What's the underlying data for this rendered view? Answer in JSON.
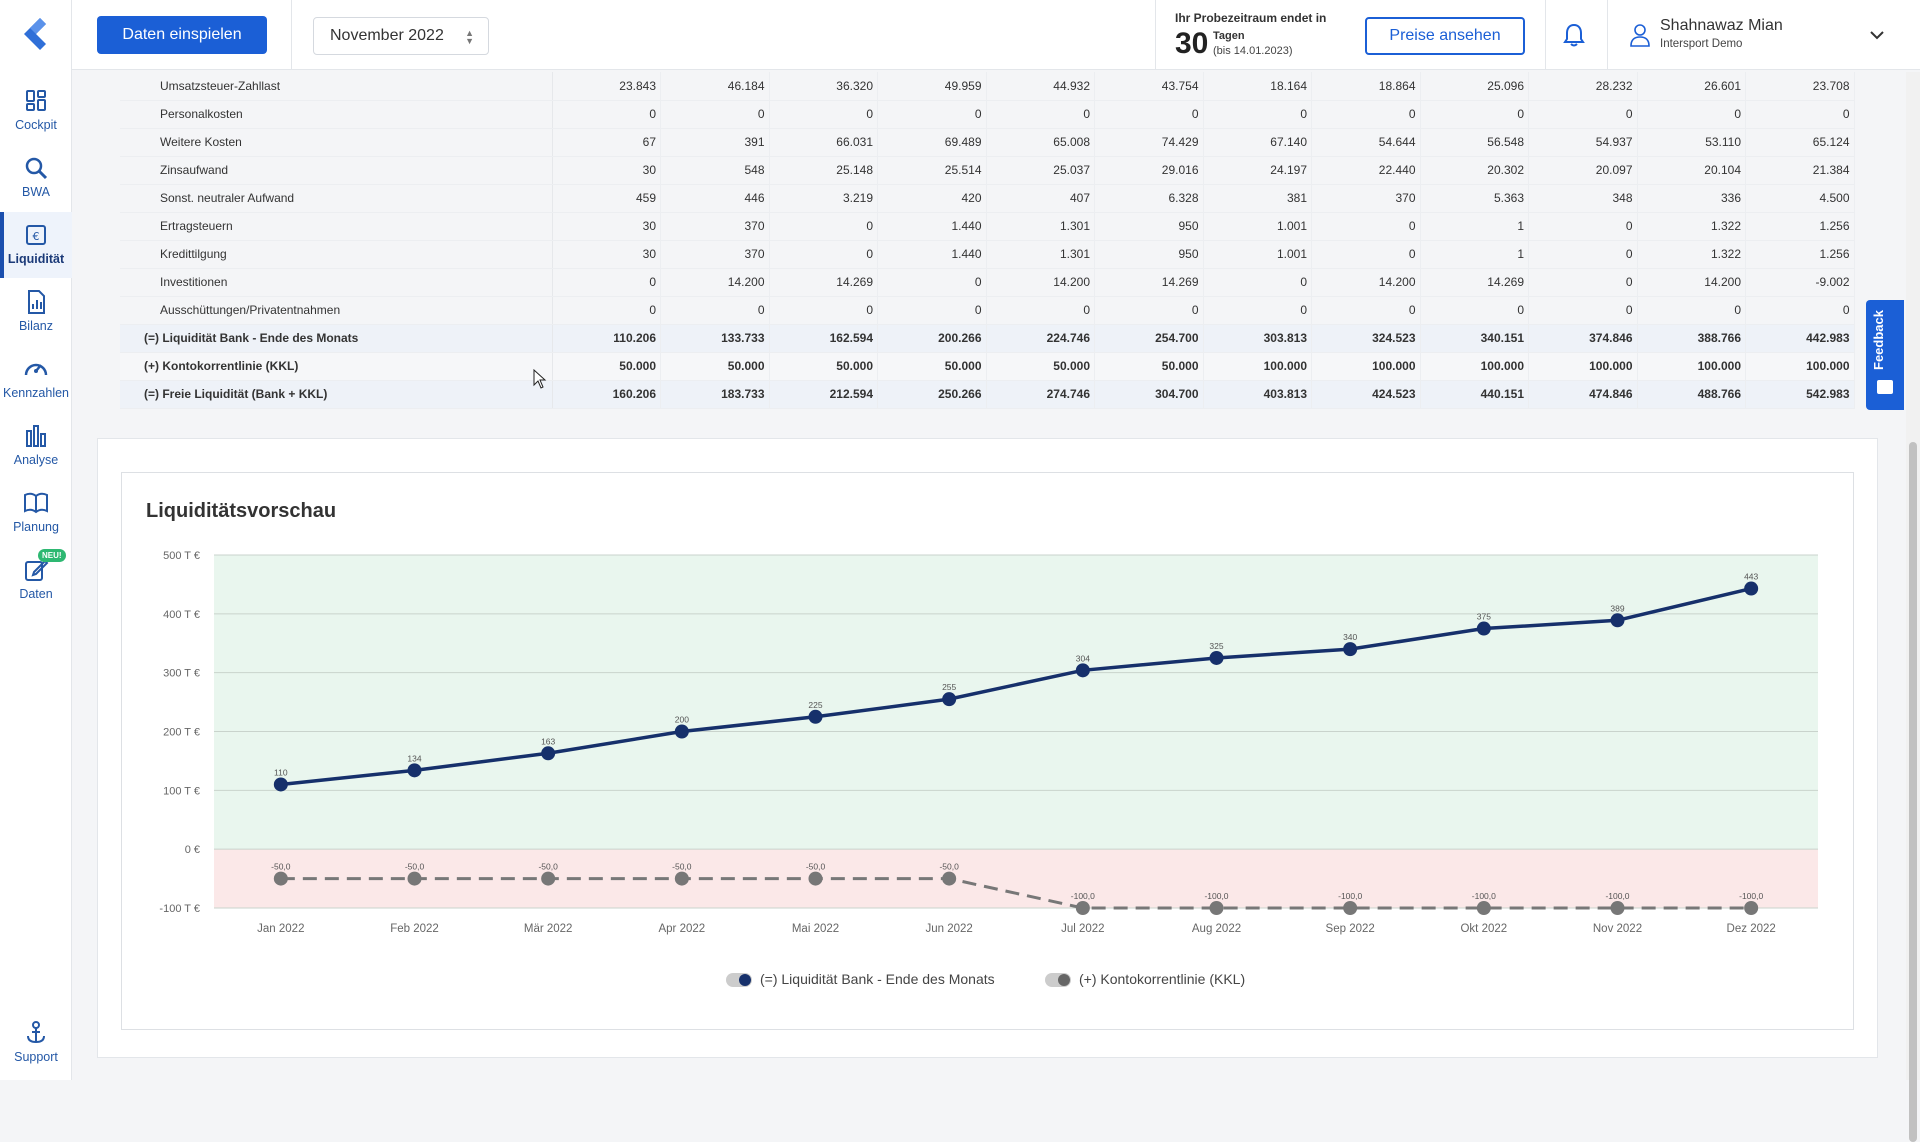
{
  "sidebar": {
    "items": [
      {
        "label": "Cockpit",
        "icon": "cockpit-icon"
      },
      {
        "label": "BWA",
        "icon": "bwa-search-icon"
      },
      {
        "label": "Liquidität",
        "icon": "liquidity-icon",
        "active": true
      },
      {
        "label": "Bilanz",
        "icon": "balance-icon"
      },
      {
        "label": "Kennzahlen",
        "icon": "gauge-icon"
      },
      {
        "label": "Analyse",
        "icon": "bar-chart-icon"
      },
      {
        "label": "Planung",
        "icon": "book-icon"
      },
      {
        "label": "Daten",
        "icon": "data-edit-icon",
        "badge": "NEU!"
      }
    ],
    "support_label": "Support"
  },
  "header": {
    "import_button": "Daten einspielen",
    "month": "November 2022",
    "trial_line1": "Ihr Probezeitraum endet in",
    "trial_days": "30",
    "trial_unit": "Tagen",
    "trial_until": "(bis 14.01.2023)",
    "prices_button": "Preise ansehen",
    "user_name": "Shahnawaz Mian",
    "user_company": "Intersport Demo"
  },
  "table": {
    "rows": [
      {
        "label": "Umsatzsteuer-Zahllast",
        "values": [
          "23.843",
          "46.184",
          "36.320",
          "49.959",
          "44.932",
          "43.754",
          "18.164",
          "18.864",
          "25.096",
          "28.232",
          "26.601",
          "23.708"
        ]
      },
      {
        "label": "Personalkosten",
        "values": [
          "0",
          "0",
          "0",
          "0",
          "0",
          "0",
          "0",
          "0",
          "0",
          "0",
          "0",
          "0"
        ]
      },
      {
        "label": "Weitere Kosten",
        "values": [
          "67",
          "391",
          "66.031",
          "69.489",
          "65.008",
          "74.429",
          "67.140",
          "54.644",
          "56.548",
          "54.937",
          "53.110",
          "65.124"
        ]
      },
      {
        "label": "Zinsaufwand",
        "values": [
          "30",
          "548",
          "25.148",
          "25.514",
          "25.037",
          "29.016",
          "24.197",
          "22.440",
          "20.302",
          "20.097",
          "20.104",
          "21.384"
        ]
      },
      {
        "label": "Sonst. neutraler Aufwand",
        "values": [
          "459",
          "446",
          "3.219",
          "420",
          "407",
          "6.328",
          "381",
          "370",
          "5.363",
          "348",
          "336",
          "4.500"
        ]
      },
      {
        "label": "Ertragsteuern",
        "values": [
          "30",
          "370",
          "0",
          "1.440",
          "1.301",
          "950",
          "1.001",
          "0",
          "1",
          "0",
          "1.322",
          "1.256"
        ]
      },
      {
        "label": "Kredittilgung",
        "values": [
          "30",
          "370",
          "0",
          "1.440",
          "1.301",
          "950",
          "1.001",
          "0",
          "1",
          "0",
          "1.322",
          "1.256"
        ]
      },
      {
        "label": "Investitionen",
        "values": [
          "0",
          "14.200",
          "14.269",
          "0",
          "14.200",
          "14.269",
          "0",
          "14.200",
          "14.269",
          "0",
          "14.200",
          "-9.002"
        ]
      },
      {
        "label": "Ausschüttungen/Privatentnahmen",
        "values": [
          "0",
          "0",
          "0",
          "0",
          "0",
          "0",
          "0",
          "0",
          "0",
          "0",
          "0",
          "0"
        ]
      },
      {
        "label": "(=) Liquidität Bank - Ende des Monats",
        "values": [
          "110.206",
          "133.733",
          "162.594",
          "200.266",
          "224.746",
          "254.700",
          "303.813",
          "324.523",
          "340.151",
          "374.846",
          "388.766",
          "442.983"
        ],
        "style": "sum"
      },
      {
        "label": "(+) Kontokorrentlinie (KKL)",
        "values": [
          "50.000",
          "50.000",
          "50.000",
          "50.000",
          "50.000",
          "50.000",
          "100.000",
          "100.000",
          "100.000",
          "100.000",
          "100.000",
          "100.000"
        ],
        "style": "kkl"
      },
      {
        "label": "(=) Freie Liquidität (Bank + KKL)",
        "values": [
          "160.206",
          "183.733",
          "212.594",
          "250.266",
          "274.746",
          "304.700",
          "403.813",
          "424.523",
          "440.151",
          "474.846",
          "488.766",
          "542.983"
        ],
        "style": "sum"
      }
    ]
  },
  "chart_title": "Liquiditätsvorschau",
  "chart_data": {
    "type": "line",
    "title": "Liquiditätsvorschau",
    "categories": [
      "Jan 2022",
      "Feb 2022",
      "Mär 2022",
      "Apr 2022",
      "Mai 2022",
      "Jun 2022",
      "Jul 2022",
      "Aug 2022",
      "Sep 2022",
      "Okt 2022",
      "Nov 2022",
      "Dez 2022"
    ],
    "series": [
      {
        "name": "(=) Liquidität Bank - Ende des Monats",
        "values": [
          110,
          134,
          163,
          200,
          225,
          255,
          304,
          325,
          340,
          375,
          389,
          443
        ],
        "labels": [
          "110",
          "134",
          "163",
          "200",
          "225",
          "255",
          "304",
          "325",
          "340",
          "375",
          "389",
          "443"
        ],
        "color": "#16306b",
        "style": "solid"
      },
      {
        "name": "(+) Kontokorrentlinie (KKL)",
        "values": [
          -50,
          -50,
          -50,
          -50,
          -50,
          -50,
          -100,
          -100,
          -100,
          -100,
          -100,
          -100
        ],
        "labels": [
          "-50,0",
          "-50,0",
          "-50,0",
          "-50,0",
          "-50,0",
          "-50,0",
          "-100,0",
          "-100,0",
          "-100,0",
          "-100,0",
          "-100,0",
          "-100,0"
        ],
        "color": "#777777",
        "style": "dashed"
      }
    ],
    "y_ticks": [
      "500 T €",
      "400 T €",
      "300 T €",
      "200 T €",
      "100 T €",
      "0 €",
      "-100 T €"
    ],
    "ylim": [
      -100,
      500
    ],
    "grid": true,
    "positive_zone_color": "#e9f6ee",
    "negative_zone_color": "#fbe8e8",
    "legend_position": "bottom-center"
  },
  "feedback_label": "Feedback"
}
